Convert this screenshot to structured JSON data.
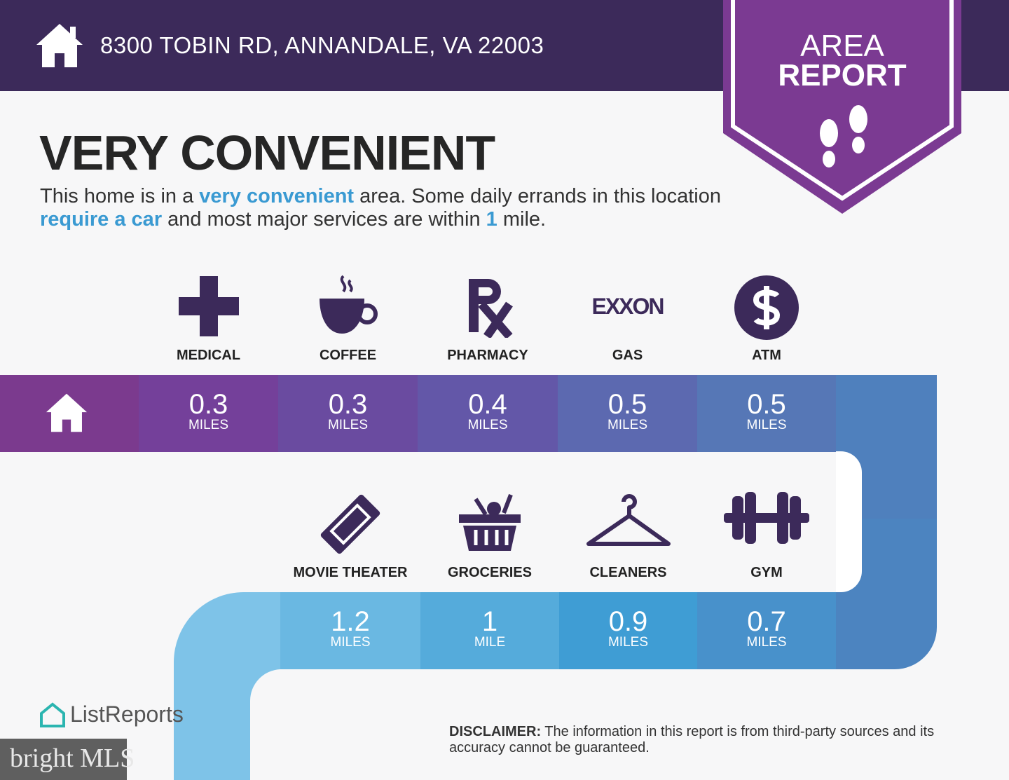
{
  "header": {
    "address": "8300 TOBIN RD, ANNANDALE, VA 22003",
    "icon": "home-icon"
  },
  "badge": {
    "line1": "AREA",
    "line2": "REPORT",
    "icon": "footprints-icon"
  },
  "rating": {
    "title": "VERY CONVENIENT",
    "desc_1": "This home is in a ",
    "desc_hl1": "very convenient",
    "desc_2": " area. Some daily errands in this location ",
    "desc_hl2": "require a car",
    "desc_3": " and most major services are within ",
    "desc_hl3": "1",
    "desc_4": " mile."
  },
  "colors": {
    "header": "#3c2a5a",
    "badge": "#7b3a92",
    "accent": "#3a9ad2"
  },
  "top_row": [
    {
      "label": "MEDICAL",
      "value": "0.3",
      "unit": "MILES",
      "icon": "medical-cross-icon"
    },
    {
      "label": "COFFEE",
      "value": "0.3",
      "unit": "MILES",
      "icon": "coffee-cup-icon"
    },
    {
      "label": "PHARMACY",
      "value": "0.4",
      "unit": "MILES",
      "icon": "rx-icon"
    },
    {
      "label": "GAS",
      "value": "0.5",
      "unit": "MILES",
      "icon": "exxon-logo",
      "logo_text": "EXXON"
    },
    {
      "label": "ATM",
      "value": "0.5",
      "unit": "MILES",
      "icon": "dollar-icon"
    }
  ],
  "bottom_row": [
    {
      "label": "MOVIE THEATER",
      "value": "1.2",
      "unit": "MILES",
      "icon": "ticket-icon"
    },
    {
      "label": "GROCERIES",
      "value": "1",
      "unit": "MILE",
      "icon": "basket-icon"
    },
    {
      "label": "CLEANERS",
      "value": "0.9",
      "unit": "MILES",
      "icon": "hanger-icon"
    },
    {
      "label": "GYM",
      "value": "0.7",
      "unit": "MILES",
      "icon": "dumbbell-icon"
    }
  ],
  "footer": {
    "brand": "ListReports",
    "disclaimer_label": "DISCLAIMER:",
    "disclaimer_text": " The information in this report is from third-party sources and its accuracy cannot be guaranteed.",
    "watermark": "bright MLS"
  }
}
